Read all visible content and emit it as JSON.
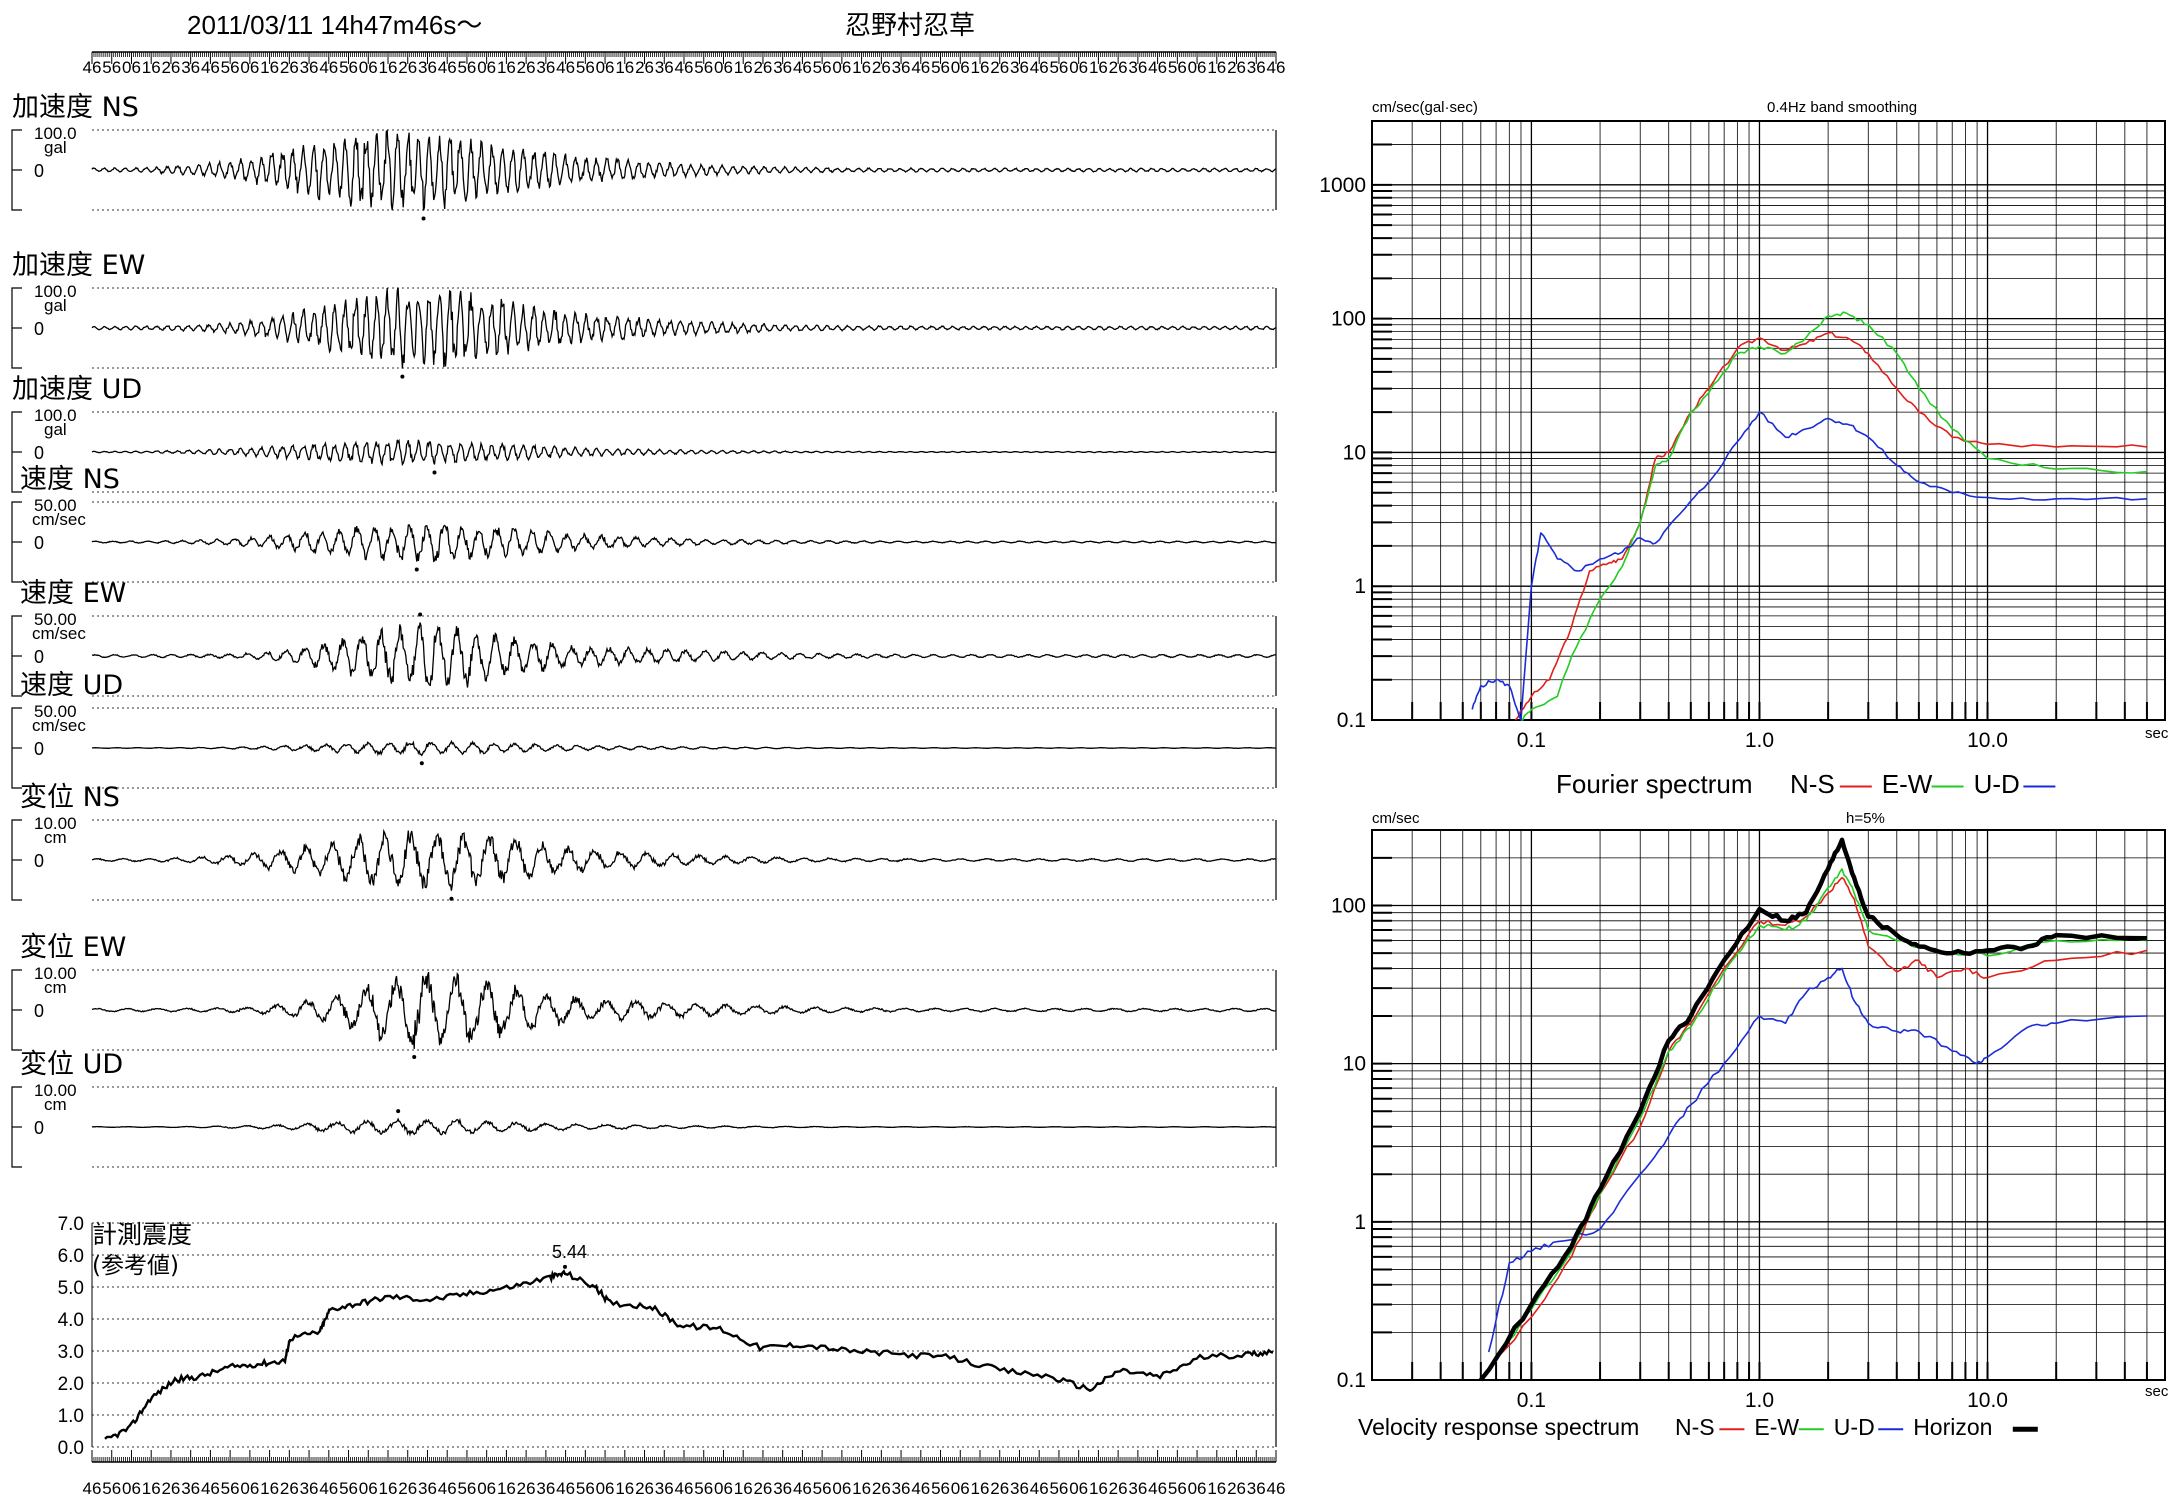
{
  "header": {
    "datetime": "2011/03/11  14h47m46s〜",
    "station": "忍野村忍草"
  },
  "time_ticks": [
    "46",
    "56",
    "06",
    "16",
    "26",
    "36",
    "46",
    "56",
    "06",
    "16",
    "26",
    "36",
    "46",
    "56",
    "06",
    "16",
    "26",
    "36",
    "46",
    "56",
    "06",
    "16",
    "26",
    "36",
    "46",
    "56",
    "06",
    "16",
    "26",
    "36",
    "46",
    "56",
    "06",
    "16",
    "26",
    "36",
    "46",
    "56",
    "06",
    "16",
    "26",
    "36",
    "46",
    "56",
    "06",
    "16",
    "26",
    "36",
    "46",
    "56",
    "06",
    "16",
    "26",
    "36",
    "46",
    "56",
    "06",
    "16",
    "26",
    "36",
    "46"
  ],
  "waveforms": [
    {
      "label": "加速度 NS",
      "scale": "100.0",
      "unit": "gal",
      "zero": "0",
      "amp": 1.0,
      "center": 300,
      "spread": 120,
      "freq": 1.0,
      "seed": 1
    },
    {
      "label": "加速度 EW",
      "scale": "100.0",
      "unit": "gal",
      "zero": "0",
      "amp": 1.0,
      "center": 320,
      "spread": 110,
      "freq": 1.0,
      "seed": 2
    },
    {
      "label": "加速度 UD",
      "scale": "100.0",
      "unit": "gal",
      "zero": "0",
      "amp": 0.3,
      "center": 300,
      "spread": 130,
      "freq": 1.0,
      "seed": 3
    },
    {
      "label": "速度 NS",
      "scale": "50.00",
      "unit": "cm/sec",
      "zero": "0",
      "amp": 0.5,
      "center": 320,
      "spread": 120,
      "freq": 0.6,
      "seed": 4
    },
    {
      "label": "速度 EW",
      "scale": "50.00",
      "unit": "cm/sec",
      "zero": "0",
      "amp": 0.85,
      "center": 330,
      "spread": 90,
      "freq": 0.55,
      "seed": 5
    },
    {
      "label": "速度 UD",
      "scale": "50.00",
      "unit": "cm/sec",
      "zero": "0",
      "amp": 0.18,
      "center": 320,
      "spread": 110,
      "freq": 0.5,
      "seed": 6
    },
    {
      "label": "変位 NS",
      "scale": "10.00",
      "unit": "cm",
      "zero": "0",
      "amp": 0.75,
      "center": 320,
      "spread": 120,
      "freq": 0.4,
      "seed": 7
    },
    {
      "label": "変位 EW",
      "scale": "10.00",
      "unit": "cm",
      "zero": "0",
      "amp": 0.95,
      "center": 335,
      "spread": 90,
      "freq": 0.35,
      "seed": 8
    },
    {
      "label": "変位 UD",
      "scale": "10.00",
      "unit": "cm",
      "zero": "0",
      "amp": 0.2,
      "center": 320,
      "spread": 110,
      "freq": 0.35,
      "seed": 9
    }
  ],
  "intensity": {
    "label_line1": "計測震度",
    "label_line2": "(参考値)",
    "yticks": [
      "0.0",
      "1.0",
      "2.0",
      "3.0",
      "4.0",
      "5.0",
      "6.0",
      "7.0"
    ],
    "peak_label": "5.44",
    "peak_value": 5.44
  },
  "chart_data": [
    {
      "type": "line",
      "title": "0.4Hz band smoothing",
      "xlabel": "sec",
      "ylabel": "cm/sec(gal·sec)",
      "xscale": "log",
      "yscale": "log",
      "xlim": [
        0.02,
        60
      ],
      "ylim": [
        0.1,
        3000
      ],
      "xticks": [
        "0.1",
        "1.0",
        "10.0"
      ],
      "yticks": [
        "0.1",
        "1",
        "10",
        "100",
        "1000"
      ],
      "legend_title": "Fourier spectrum",
      "series": [
        {
          "name": "N-S",
          "color": "#e0201c",
          "points": [
            [
              0.085,
              0.1
            ],
            [
              0.1,
              0.15
            ],
            [
              0.12,
              0.2
            ],
            [
              0.15,
              0.5
            ],
            [
              0.18,
              1.3
            ],
            [
              0.22,
              1.5
            ],
            [
              0.25,
              1.6
            ],
            [
              0.3,
              3
            ],
            [
              0.35,
              9
            ],
            [
              0.4,
              10
            ],
            [
              0.5,
              20
            ],
            [
              0.6,
              30
            ],
            [
              0.8,
              60
            ],
            [
              1.0,
              72
            ],
            [
              1.3,
              58
            ],
            [
              1.6,
              65
            ],
            [
              2.0,
              78
            ],
            [
              2.5,
              70
            ],
            [
              3.0,
              55
            ],
            [
              4.0,
              30
            ],
            [
              5.0,
              20
            ],
            [
              7.0,
              13
            ],
            [
              10,
              11.5
            ],
            [
              20,
              11
            ],
            [
              50,
              11
            ]
          ]
        },
        {
          "name": "E-W",
          "color": "#22cc22",
          "points": [
            [
              0.09,
              0.1
            ],
            [
              0.1,
              0.12
            ],
            [
              0.13,
              0.15
            ],
            [
              0.15,
              0.3
            ],
            [
              0.2,
              0.8
            ],
            [
              0.25,
              1.4
            ],
            [
              0.3,
              3
            ],
            [
              0.35,
              8
            ],
            [
              0.4,
              9
            ],
            [
              0.5,
              20
            ],
            [
              0.6,
              28
            ],
            [
              0.8,
              55
            ],
            [
              1.0,
              62
            ],
            [
              1.3,
              55
            ],
            [
              1.6,
              72
            ],
            [
              2.0,
              105
            ],
            [
              2.4,
              110
            ],
            [
              3.0,
              90
            ],
            [
              4.0,
              55
            ],
            [
              5.0,
              30
            ],
            [
              7.0,
              15
            ],
            [
              10,
              9
            ],
            [
              20,
              7.5
            ],
            [
              50,
              7.2
            ]
          ]
        },
        {
          "name": "U-D",
          "color": "#1a2cd8",
          "points": [
            [
              0.055,
              0.12
            ],
            [
              0.06,
              0.18
            ],
            [
              0.07,
              0.2
            ],
            [
              0.08,
              0.18
            ],
            [
              0.09,
              0.1
            ],
            [
              0.1,
              1.0
            ],
            [
              0.11,
              2.5
            ],
            [
              0.13,
              1.6
            ],
            [
              0.16,
              1.3
            ],
            [
              0.2,
              1.6
            ],
            [
              0.25,
              1.8
            ],
            [
              0.3,
              2.3
            ],
            [
              0.35,
              2.1
            ],
            [
              0.45,
              3.5
            ],
            [
              0.6,
              6
            ],
            [
              0.8,
              12
            ],
            [
              1.0,
              20
            ],
            [
              1.3,
              13
            ],
            [
              1.6,
              15
            ],
            [
              2.0,
              18
            ],
            [
              2.5,
              16
            ],
            [
              3.0,
              13
            ],
            [
              4.0,
              8
            ],
            [
              5.0,
              6
            ],
            [
              7.0,
              5
            ],
            [
              10,
              4.6
            ],
            [
              20,
              4.5
            ],
            [
              50,
              4.5
            ]
          ]
        }
      ]
    },
    {
      "type": "line",
      "title": "h=5%",
      "xlabel": "sec",
      "ylabel": "cm/sec",
      "xscale": "log",
      "yscale": "log",
      "xlim": [
        0.02,
        60
      ],
      "ylim": [
        0.1,
        300
      ],
      "xticks": [
        "0.1",
        "1.0",
        "10.0"
      ],
      "yticks": [
        "0.1",
        "1",
        "10",
        "100"
      ],
      "legend_title": "Velocity response spectrum",
      "series": [
        {
          "name": "N-S",
          "color": "#e0201c",
          "points": [
            [
              0.06,
              0.1
            ],
            [
              0.1,
              0.25
            ],
            [
              0.15,
              0.6
            ],
            [
              0.2,
              1.5
            ],
            [
              0.3,
              4
            ],
            [
              0.4,
              12
            ],
            [
              0.5,
              18
            ],
            [
              0.7,
              40
            ],
            [
              1.0,
              80
            ],
            [
              1.3,
              75
            ],
            [
              1.6,
              85
            ],
            [
              2.0,
              120
            ],
            [
              2.3,
              150
            ],
            [
              2.6,
              110
            ],
            [
              3.0,
              55
            ],
            [
              4.0,
              38
            ],
            [
              5.0,
              45
            ],
            [
              6.0,
              35
            ],
            [
              8.0,
              40
            ],
            [
              10,
              35
            ],
            [
              20,
              45
            ],
            [
              50,
              52
            ]
          ]
        },
        {
          "name": "E-W",
          "color": "#22cc22",
          "points": [
            [
              0.06,
              0.1
            ],
            [
              0.1,
              0.28
            ],
            [
              0.15,
              0.65
            ],
            [
              0.2,
              1.5
            ],
            [
              0.3,
              4.5
            ],
            [
              0.4,
              12
            ],
            [
              0.5,
              17
            ],
            [
              0.7,
              38
            ],
            [
              1.0,
              75
            ],
            [
              1.3,
              70
            ],
            [
              1.6,
              80
            ],
            [
              2.0,
              130
            ],
            [
              2.3,
              170
            ],
            [
              2.6,
              120
            ],
            [
              3.0,
              70
            ],
            [
              4.0,
              60
            ],
            [
              5.0,
              55
            ],
            [
              7.0,
              50
            ],
            [
              10,
              48
            ],
            [
              20,
              60
            ],
            [
              50,
              60
            ]
          ]
        },
        {
          "name": "U-D",
          "color": "#1a2cd8",
          "points": [
            [
              0.065,
              0.15
            ],
            [
              0.08,
              0.55
            ],
            [
              0.1,
              0.65
            ],
            [
              0.13,
              0.75
            ],
            [
              0.2,
              0.9
            ],
            [
              0.3,
              2
            ],
            [
              0.4,
              3.5
            ],
            [
              0.5,
              5.5
            ],
            [
              0.7,
              10
            ],
            [
              1.0,
              20
            ],
            [
              1.3,
              18
            ],
            [
              1.6,
              28
            ],
            [
              2.0,
              35
            ],
            [
              2.3,
              40
            ],
            [
              2.6,
              25
            ],
            [
              3.0,
              18
            ],
            [
              4.0,
              16
            ],
            [
              5.0,
              16
            ],
            [
              7.0,
              12
            ],
            [
              9.0,
              10
            ],
            [
              10,
              11
            ],
            [
              15,
              17
            ],
            [
              20,
              18
            ],
            [
              50,
              20
            ]
          ]
        },
        {
          "name": "Horizon",
          "color": "#000000",
          "points": [
            [
              0.06,
              0.1
            ],
            [
              0.1,
              0.3
            ],
            [
              0.15,
              0.7
            ],
            [
              0.2,
              1.6
            ],
            [
              0.3,
              5
            ],
            [
              0.4,
              14
            ],
            [
              0.5,
              20
            ],
            [
              0.7,
              45
            ],
            [
              1.0,
              95
            ],
            [
              1.3,
              80
            ],
            [
              1.6,
              90
            ],
            [
              2.0,
              170
            ],
            [
              2.3,
              260
            ],
            [
              2.6,
              150
            ],
            [
              3.0,
              85
            ],
            [
              4.0,
              65
            ],
            [
              5.0,
              55
            ],
            [
              7.0,
              50
            ],
            [
              10,
              52
            ],
            [
              15,
              55
            ],
            [
              20,
              65
            ],
            [
              50,
              62
            ]
          ]
        }
      ]
    }
  ]
}
